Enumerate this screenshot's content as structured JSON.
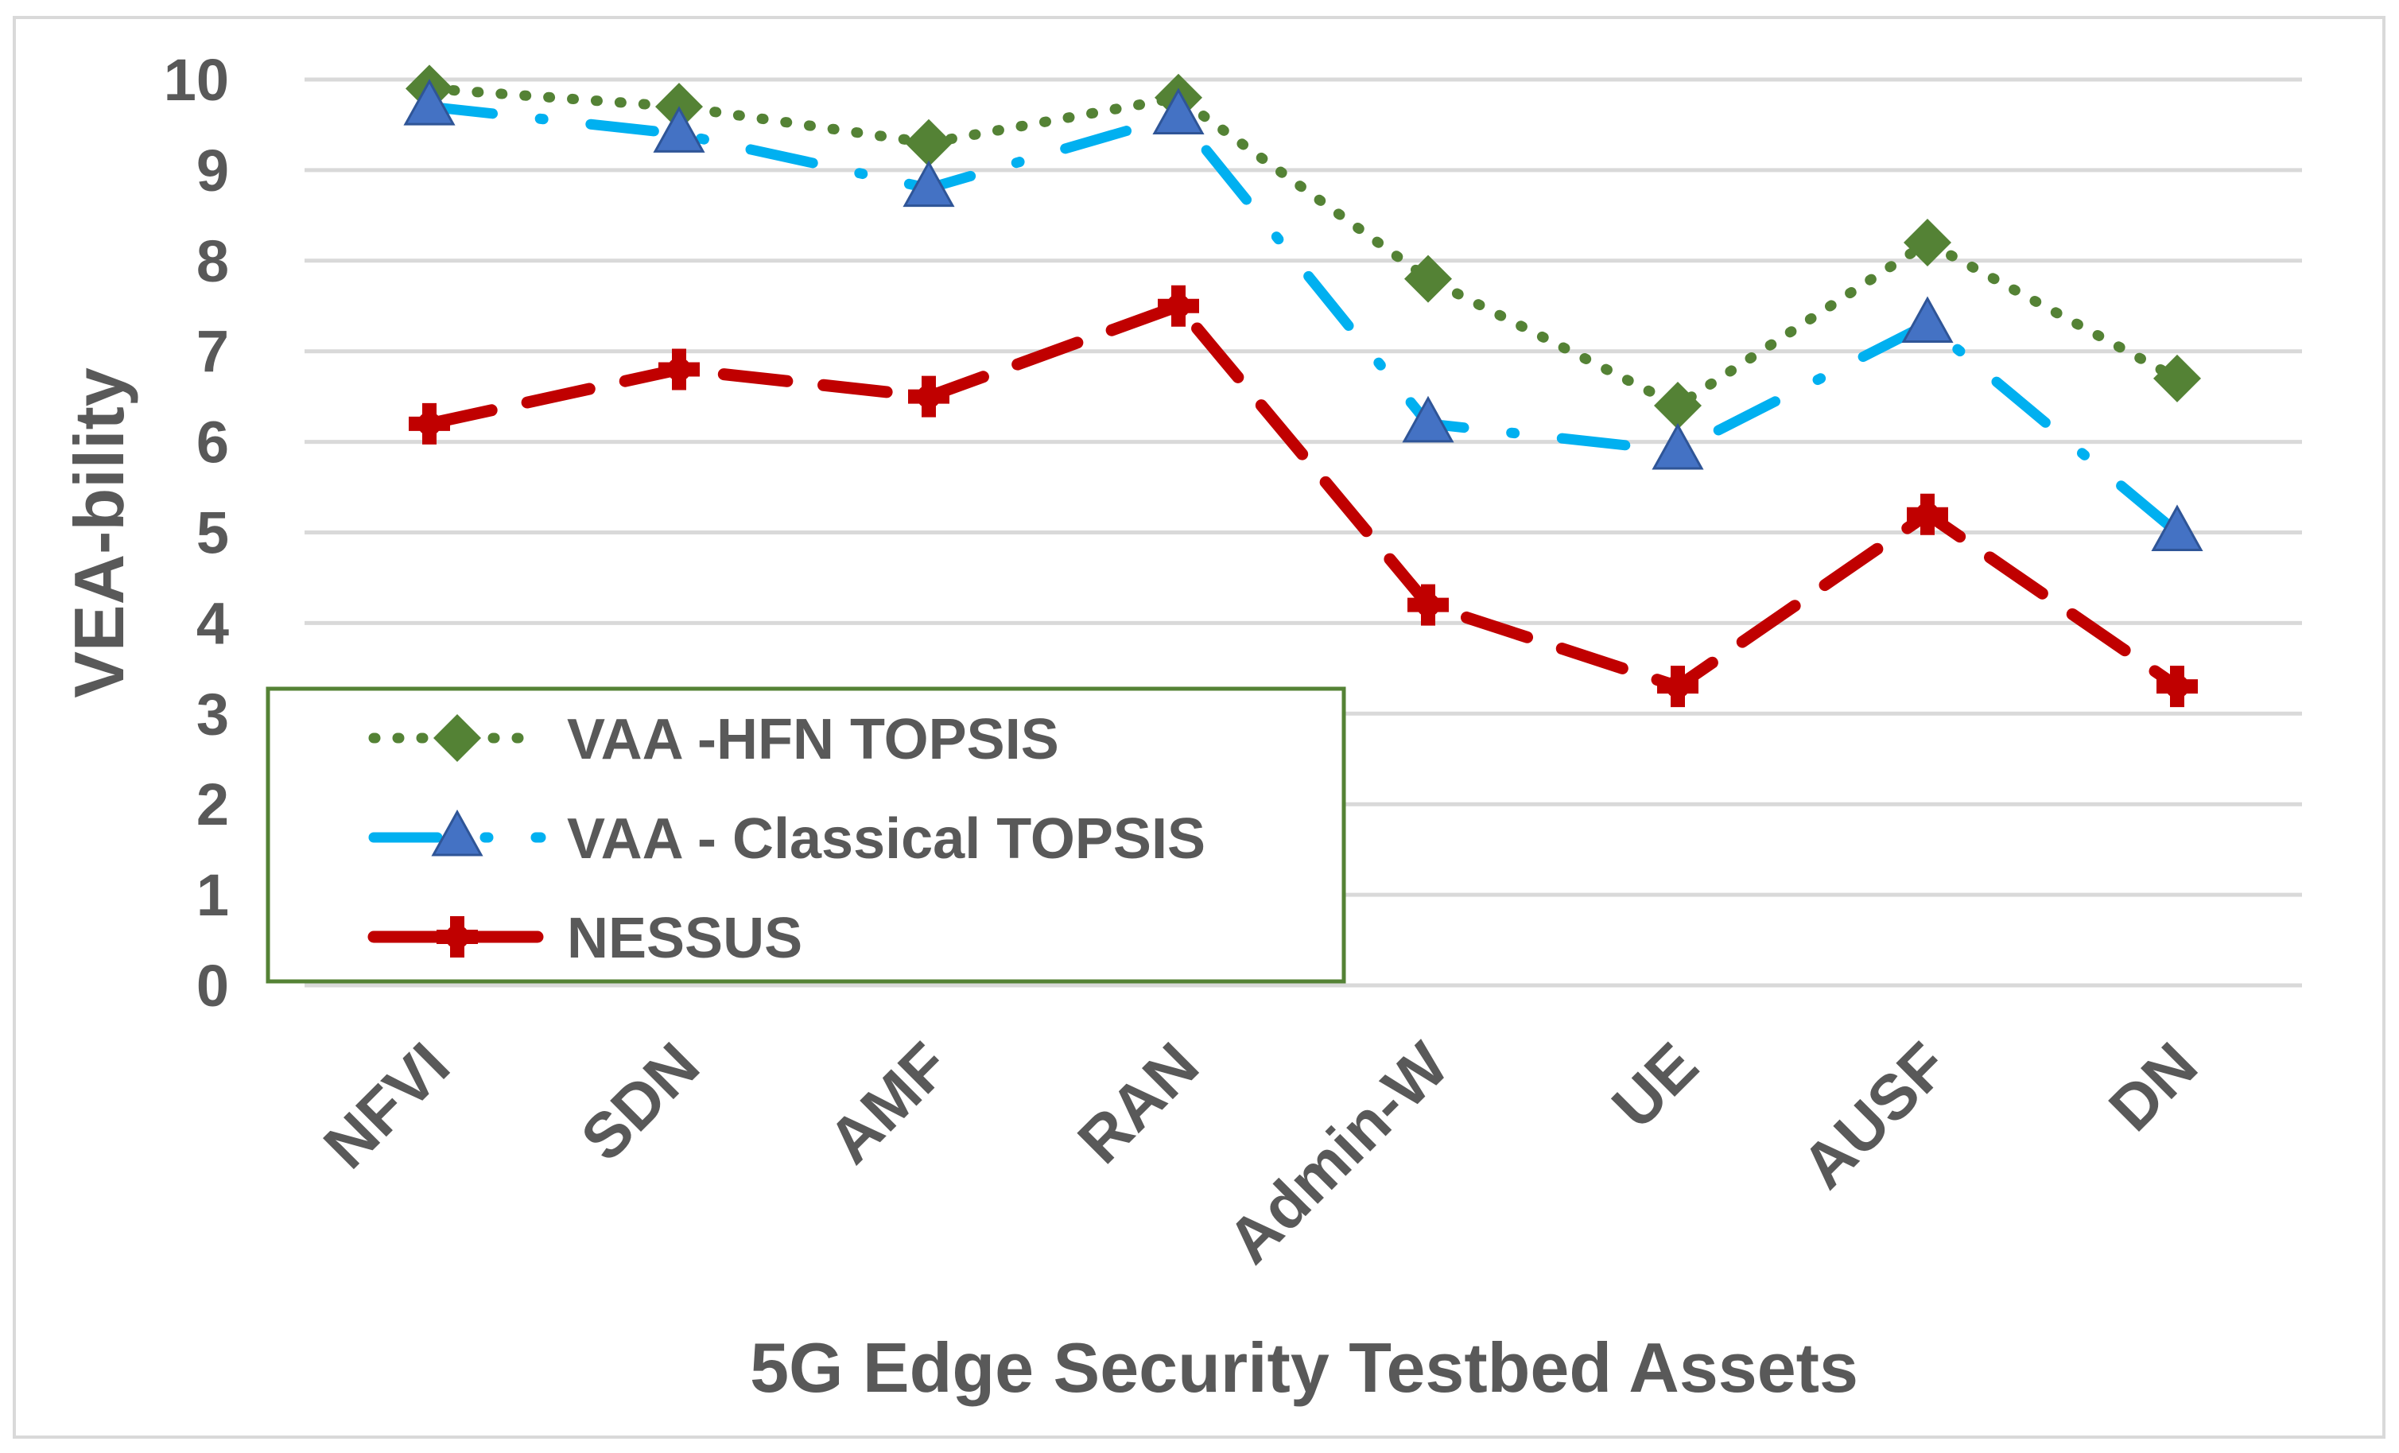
{
  "chart_data": {
    "type": "line",
    "title": "",
    "xlabel": "5G Edge Security Testbed Assets",
    "ylabel": "VEA-bility",
    "categories": [
      "NFVI",
      "SDN",
      "AMF",
      "RAN",
      "Admin-W",
      "UE",
      "AUSF",
      "DN"
    ],
    "ylim": [
      0,
      10
    ],
    "yticks": [
      0,
      1,
      2,
      3,
      4,
      5,
      6,
      7,
      8,
      9,
      10
    ],
    "grid": true,
    "legend_position": "bottom-left",
    "series": [
      {
        "name": "VAA -HFN TOPSIS",
        "values": [
          9.9,
          9.7,
          9.3,
          9.8,
          7.8,
          6.4,
          8.2,
          6.7
        ],
        "color": "#548235",
        "line_style": "dotted",
        "marker": "diamond"
      },
      {
        "name": "VAA - Classical TOPSIS",
        "values": [
          9.7,
          9.4,
          8.8,
          9.6,
          6.2,
          5.9,
          7.3,
          5.0
        ],
        "color": "#00B0F0",
        "line_style": "dash-dot",
        "marker": "triangle"
      },
      {
        "name": "NESSUS",
        "values": [
          6.2,
          6.8,
          6.5,
          7.5,
          4.2,
          3.3,
          5.2,
          3.3
        ],
        "color": "#C00000",
        "line_style": "dashed",
        "marker": "cross"
      }
    ]
  }
}
